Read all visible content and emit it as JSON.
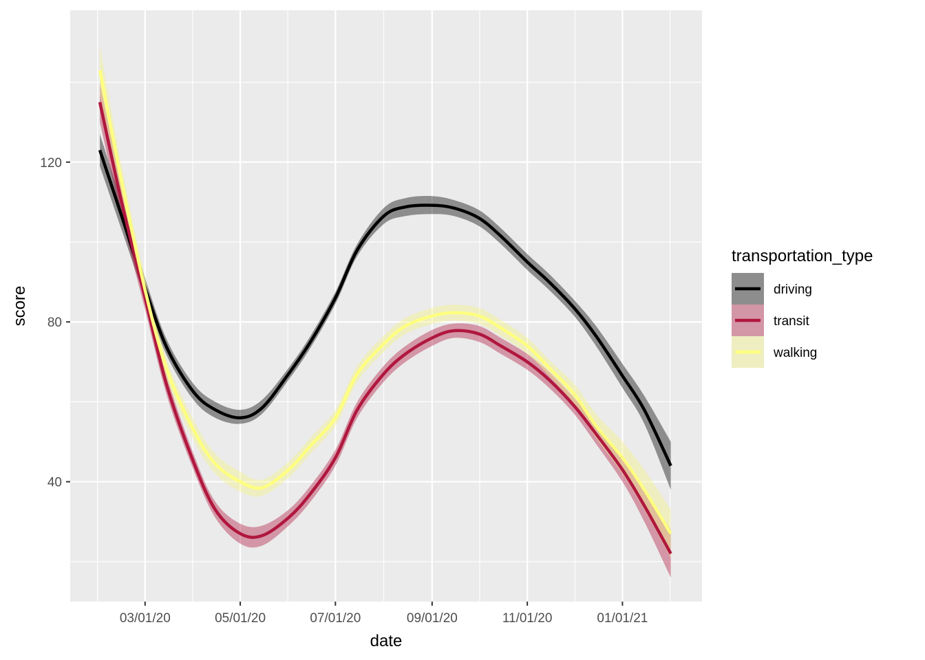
{
  "chart_data": {
    "type": "line",
    "title": "",
    "xlabel": "date",
    "ylabel": "score",
    "x_ticks": [
      "2020-03-01",
      "2020-05-01",
      "2020-07-01",
      "2020-09-01",
      "2020-11-01",
      "2021-01-01"
    ],
    "x_tick_labels": [
      "03/01/20",
      "05/01/20",
      "07/01/20",
      "09/01/20",
      "11/01/20",
      "01/01/21"
    ],
    "xlim": [
      "2020-01-13",
      "2021-02-21"
    ],
    "y_ticks": [
      40,
      80,
      120
    ],
    "ylim": [
      10,
      158
    ],
    "grid": true,
    "legend": {
      "title": "transportation_type",
      "position": "right"
    },
    "series": [
      {
        "name": "driving",
        "color": "#000000",
        "band_color": "#000000",
        "band_opacity": 0.4,
        "x": [
          "2020-02-01",
          "2020-02-15",
          "2020-03-01",
          "2020-03-15",
          "2020-04-01",
          "2020-04-15",
          "2020-05-01",
          "2020-05-15",
          "2020-06-01",
          "2020-06-15",
          "2020-07-01",
          "2020-07-15",
          "2020-08-01",
          "2020-08-15",
          "2020-09-01",
          "2020-09-15",
          "2020-10-01",
          "2020-10-15",
          "2020-11-01",
          "2020-11-15",
          "2020-12-01",
          "2020-12-15",
          "2021-01-01",
          "2021-01-15",
          "2021-02-01"
        ],
        "y": [
          123,
          106.5,
          88.5,
          73.5,
          62.5,
          58,
          56,
          58.5,
          67,
          75,
          86,
          98,
          106.5,
          108.8,
          109.2,
          108.5,
          106,
          101.5,
          95,
          90,
          83.5,
          76.5,
          66.5,
          58,
          44
        ],
        "lower": [
          119,
          103,
          86,
          71.5,
          60.5,
          56,
          54.5,
          57,
          65.5,
          73.5,
          84.5,
          96.5,
          104.5,
          106.5,
          107,
          106.5,
          104,
          99.5,
          93,
          88,
          81.5,
          74,
          63.5,
          54.5,
          38
        ],
        "upper": [
          127,
          110,
          91,
          75.5,
          64.5,
          60,
          58,
          60.5,
          68.5,
          76.5,
          87.5,
          99.5,
          108.5,
          111,
          111.5,
          110.5,
          108,
          103.5,
          97,
          92,
          85.5,
          79,
          69.5,
          61.5,
          50
        ]
      },
      {
        "name": "transit",
        "color": "#b0173e",
        "band_color": "#b0173e",
        "band_opacity": 0.4,
        "x": [
          "2020-02-01",
          "2020-02-15",
          "2020-03-01",
          "2020-03-15",
          "2020-04-01",
          "2020-04-15",
          "2020-05-01",
          "2020-05-15",
          "2020-06-01",
          "2020-06-15",
          "2020-07-01",
          "2020-07-15",
          "2020-08-01",
          "2020-08-15",
          "2020-09-01",
          "2020-09-15",
          "2020-10-01",
          "2020-10-15",
          "2020-11-01",
          "2020-11-15",
          "2020-12-01",
          "2020-12-15",
          "2021-01-01",
          "2021-01-15",
          "2021-02-01"
        ],
        "y": [
          135,
          110,
          86,
          64,
          45,
          33,
          27,
          26.5,
          31,
          37,
          46,
          58,
          67,
          72,
          76,
          77.8,
          77,
          74,
          70,
          65.5,
          59,
          52,
          43,
          34,
          22
        ],
        "lower": [
          130,
          106,
          83,
          61.5,
          43,
          31,
          24.5,
          24,
          29,
          35,
          44,
          56,
          65,
          70,
          74,
          76,
          75,
          72,
          68,
          63.5,
          57,
          49.5,
          40,
          30,
          16
        ],
        "upper": [
          140,
          114,
          89,
          66.5,
          47,
          35,
          29.5,
          29,
          33,
          39,
          48,
          60,
          69,
          74,
          78,
          79.6,
          79,
          76,
          72,
          67.5,
          61,
          54.5,
          46,
          38,
          28
        ]
      },
      {
        "name": "walking",
        "color": "#ffff80",
        "band_color": "#f2f28c",
        "band_opacity": 0.45,
        "x": [
          "2020-02-01",
          "2020-02-15",
          "2020-03-01",
          "2020-03-15",
          "2020-04-01",
          "2020-04-15",
          "2020-05-01",
          "2020-05-15",
          "2020-06-01",
          "2020-06-15",
          "2020-07-01",
          "2020-07-15",
          "2020-08-01",
          "2020-08-15",
          "2020-09-01",
          "2020-09-15",
          "2020-10-01",
          "2020-10-15",
          "2020-11-01",
          "2020-11-15",
          "2020-12-01",
          "2020-12-15",
          "2021-01-01",
          "2021-01-15",
          "2021-02-01"
        ],
        "y": [
          143,
          115,
          88,
          68,
          53,
          44.5,
          40,
          38.5,
          43,
          49,
          56,
          67,
          74.5,
          79,
          81.5,
          82.3,
          81.5,
          78.5,
          74,
          68.5,
          62,
          54,
          46,
          38,
          27
        ],
        "lower": [
          137,
          111,
          85,
          65.5,
          50.5,
          42,
          37.5,
          36.5,
          41,
          47,
          54,
          65,
          72.5,
          77,
          79.5,
          80.3,
          79.5,
          76.5,
          72,
          66.5,
          59.5,
          51,
          42,
          33,
          21
        ],
        "upper": [
          149,
          119,
          91,
          70.5,
          55.5,
          47,
          42.5,
          40.5,
          45,
          51,
          58,
          69,
          76.5,
          81,
          83.5,
          84.3,
          83.5,
          80.5,
          76,
          70.5,
          64.5,
          57,
          50,
          43,
          33
        ]
      }
    ]
  }
}
